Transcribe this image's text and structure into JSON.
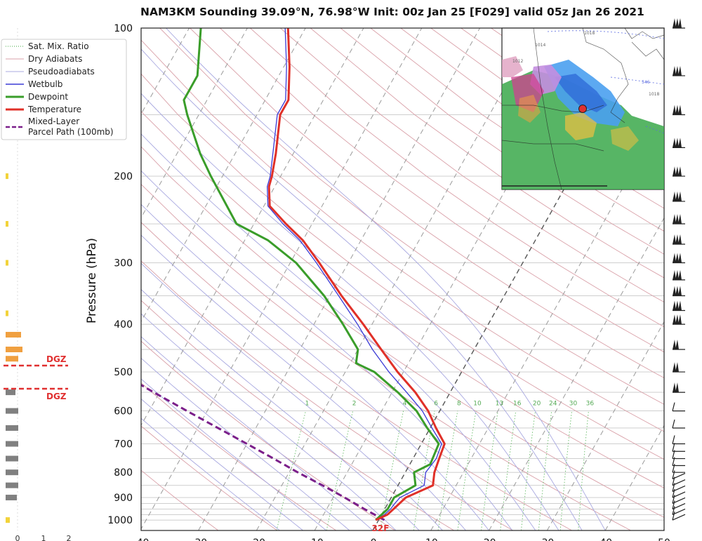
{
  "title": "NAM3KM Sounding 39.09°N, 76.98°W Init: 00z Jan 25 [F029] valid 05z Jan 26 2021",
  "colors": {
    "temperature": "#e03028",
    "dewpoint": "#3a9d2a",
    "wetbulb": "#3b3bd6",
    "parcel": "#7b1f8a",
    "dry_adiabat": "#d9a0a8",
    "moist_adiabat": "#a8a8e0",
    "mixing_ratio": "#66bb66",
    "dgz": "#e03030"
  },
  "legend": {
    "items": [
      {
        "label": "Sat. Mix. Ratio",
        "style": "dotted",
        "color": "#66bb66"
      },
      {
        "label": "Dry Adiabats",
        "style": "solid-thin",
        "color": "#d9a0a8"
      },
      {
        "label": "Pseudoadiabats",
        "style": "solid-thin",
        "color": "#a8a8e0"
      },
      {
        "label": "Wetbulb",
        "style": "solid",
        "color": "#3b3bd6"
      },
      {
        "label": "Dewpoint",
        "style": "solid-thick",
        "color": "#3a9d2a"
      },
      {
        "label": "Temperature",
        "style": "solid-thick",
        "color": "#e03028"
      },
      {
        "label": "Mixed-Layer",
        "style": "dashed",
        "color": "#7b1f8a"
      },
      {
        "label": "Parcel Path (100mb)",
        "style": "none",
        "color": "#7b1f8a"
      }
    ]
  },
  "side_panel": {
    "dgz_label_upper": "DGZ",
    "dgz_label_lower": "DGZ",
    "axis_ticks": [
      "0",
      "1",
      "2"
    ]
  },
  "freezing_label": "32F",
  "inset_map": {
    "isobar_labels": [
      "1018",
      "1014",
      "1012",
      "1018",
      "546"
    ]
  },
  "chart_data": {
    "type": "line",
    "title": "NAM3KM Sounding 39.09°N, 76.98°W Init: 00z Jan 25 [F029] valid 05z Jan 26 2021",
    "ylabel": "Pressure (hPa)",
    "xlabel": "",
    "y_scale": "log",
    "ylim": [
      1050,
      100
    ],
    "xlim": [
      -40,
      50
    ],
    "yticks": [
      100,
      200,
      300,
      400,
      500,
      600,
      700,
      800,
      900,
      1000
    ],
    "xticks": [
      "-40",
      "-30",
      "-20",
      "-10",
      "0",
      "10",
      "20",
      "30",
      "40",
      "50"
    ],
    "mixing_ratio_labels": [
      "1",
      "2",
      "4",
      "6",
      "8",
      "10",
      "13",
      "16",
      "20",
      "24",
      "30",
      "36"
    ],
    "skew_note": "skew-T log-P diagram",
    "series": [
      {
        "name": "Temperature",
        "points": [
          {
            "p": 1000,
            "t": -0.5
          },
          {
            "p": 975,
            "t": 1.0
          },
          {
            "p": 950,
            "t": 1.5
          },
          {
            "p": 925,
            "t": 2.0
          },
          {
            "p": 900,
            "t": 2.5
          },
          {
            "p": 850,
            "t": 6.0
          },
          {
            "p": 800,
            "t": 5.0
          },
          {
            "p": 750,
            "t": 4.5
          },
          {
            "p": 700,
            "t": 4.0
          },
          {
            "p": 650,
            "t": 1.0
          },
          {
            "p": 600,
            "t": -2.0
          },
          {
            "p": 550,
            "t": -6.0
          },
          {
            "p": 500,
            "t": -11.0
          },
          {
            "p": 450,
            "t": -16.0
          },
          {
            "p": 400,
            "t": -21.5
          },
          {
            "p": 350,
            "t": -28.0
          },
          {
            "p": 300,
            "t": -35.0
          },
          {
            "p": 270,
            "t": -40.0
          },
          {
            "p": 250,
            "t": -44.5
          },
          {
            "p": 230,
            "t": -49.0
          },
          {
            "p": 210,
            "t": -51.0
          },
          {
            "p": 200,
            "t": -51.5
          },
          {
            "p": 180,
            "t": -53.0
          },
          {
            "p": 150,
            "t": -56.0
          },
          {
            "p": 140,
            "t": -56.0
          },
          {
            "p": 120,
            "t": -59.0
          },
          {
            "p": 100,
            "t": -63.0
          }
        ]
      },
      {
        "name": "Dewpoint",
        "points": [
          {
            "p": 1000,
            "t": -0.5
          },
          {
            "p": 975,
            "t": 0.0
          },
          {
            "p": 950,
            "t": 0.5
          },
          {
            "p": 925,
            "t": 0.5
          },
          {
            "p": 900,
            "t": 0.5
          },
          {
            "p": 850,
            "t": 3.0
          },
          {
            "p": 800,
            "t": 1.5
          },
          {
            "p": 770,
            "t": 3.5
          },
          {
            "p": 700,
            "t": 3.0
          },
          {
            "p": 650,
            "t": -0.5
          },
          {
            "p": 600,
            "t": -4.0
          },
          {
            "p": 550,
            "t": -9.0
          },
          {
            "p": 500,
            "t": -15.0
          },
          {
            "p": 480,
            "t": -19.0
          },
          {
            "p": 450,
            "t": -20.0
          },
          {
            "p": 400,
            "t": -25.0
          },
          {
            "p": 350,
            "t": -31.0
          },
          {
            "p": 300,
            "t": -39.0
          },
          {
            "p": 270,
            "t": -46.0
          },
          {
            "p": 250,
            "t": -53.0
          },
          {
            "p": 200,
            "t": -62.0
          },
          {
            "p": 180,
            "t": -66.0
          },
          {
            "p": 150,
            "t": -72.0
          },
          {
            "p": 140,
            "t": -74.0
          },
          {
            "p": 125,
            "t": -74.0
          },
          {
            "p": 100,
            "t": -78.0
          }
        ]
      },
      {
        "name": "Wetbulb",
        "points": [
          {
            "p": 1000,
            "t": -0.5
          },
          {
            "p": 975,
            "t": 0.5
          },
          {
            "p": 950,
            "t": 1.0
          },
          {
            "p": 925,
            "t": 1.2
          },
          {
            "p": 900,
            "t": 1.5
          },
          {
            "p": 850,
            "t": 4.5
          },
          {
            "p": 800,
            "t": 3.5
          },
          {
            "p": 750,
            "t": 4.0
          },
          {
            "p": 700,
            "t": 3.5
          },
          {
            "p": 650,
            "t": 0.3
          },
          {
            "p": 600,
            "t": -3.0
          },
          {
            "p": 550,
            "t": -7.5
          },
          {
            "p": 500,
            "t": -12.5
          },
          {
            "p": 450,
            "t": -17.5
          },
          {
            "p": 400,
            "t": -22.5
          },
          {
            "p": 350,
            "t": -28.5
          },
          {
            "p": 300,
            "t": -35.5
          },
          {
            "p": 270,
            "t": -40.5
          },
          {
            "p": 250,
            "t": -45.0
          },
          {
            "p": 230,
            "t": -49.3
          },
          {
            "p": 210,
            "t": -51.3
          },
          {
            "p": 200,
            "t": -51.8
          },
          {
            "p": 180,
            "t": -53.5
          },
          {
            "p": 150,
            "t": -56.5
          },
          {
            "p": 140,
            "t": -56.5
          },
          {
            "p": 120,
            "t": -59.5
          },
          {
            "p": 100,
            "t": -63.5
          }
        ]
      },
      {
        "name": "Mixed-Layer Parcel Path (100mb)",
        "points": [
          {
            "p": 1000,
            "t": 1.0
          },
          {
            "p": 950,
            "t": -3.5
          },
          {
            "p": 900,
            "t": -8.0
          },
          {
            "p": 850,
            "t": -13.0
          },
          {
            "p": 800,
            "t": -18.5
          },
          {
            "p": 750,
            "t": -24.0
          },
          {
            "p": 700,
            "t": -30.0
          },
          {
            "p": 650,
            "t": -36.5
          },
          {
            "p": 600,
            "t": -43.5
          },
          {
            "p": 550,
            "t": -51.0
          },
          {
            "p": 500,
            "t": -59.0
          },
          {
            "p": 450,
            "t": -67.0
          },
          {
            "p": 400,
            "t": -75.5
          },
          {
            "p": 350,
            "t": -85.0
          },
          {
            "p": 300,
            "t": -95.0
          },
          {
            "p": 280,
            "t": -100.0
          }
        ]
      }
    ],
    "dgz_levels_hpa": [
      484,
      545
    ],
    "side_histogram": [
      {
        "p": 1000,
        "value": 0.15,
        "color": "#f2d33a"
      },
      {
        "p": 550,
        "value": 0.35,
        "color": "#808080"
      },
      {
        "p": 600,
        "value": 0.45,
        "color": "#808080"
      },
      {
        "p": 650,
        "value": 0.45,
        "color": "#808080"
      },
      {
        "p": 700,
        "value": 0.45,
        "color": "#808080"
      },
      {
        "p": 750,
        "value": 0.45,
        "color": "#808080"
      },
      {
        "p": 800,
        "value": 0.45,
        "color": "#808080"
      },
      {
        "p": 850,
        "value": 0.45,
        "color": "#808080"
      },
      {
        "p": 900,
        "value": 0.4,
        "color": "#808080"
      },
      {
        "p": 450,
        "value": 0.6,
        "color": "#f0a040"
      },
      {
        "p": 420,
        "value": 0.55,
        "color": "#f0a040"
      },
      {
        "p": 470,
        "value": 0.45,
        "color": "#f0a040"
      },
      {
        "p": 380,
        "value": 0.1,
        "color": "#f2d33a"
      },
      {
        "p": 300,
        "value": 0.1,
        "color": "#f2d33a"
      },
      {
        "p": 250,
        "value": 0.1,
        "color": "#f2d33a"
      },
      {
        "p": 200,
        "value": 0.1,
        "color": "#f2d33a"
      }
    ]
  }
}
